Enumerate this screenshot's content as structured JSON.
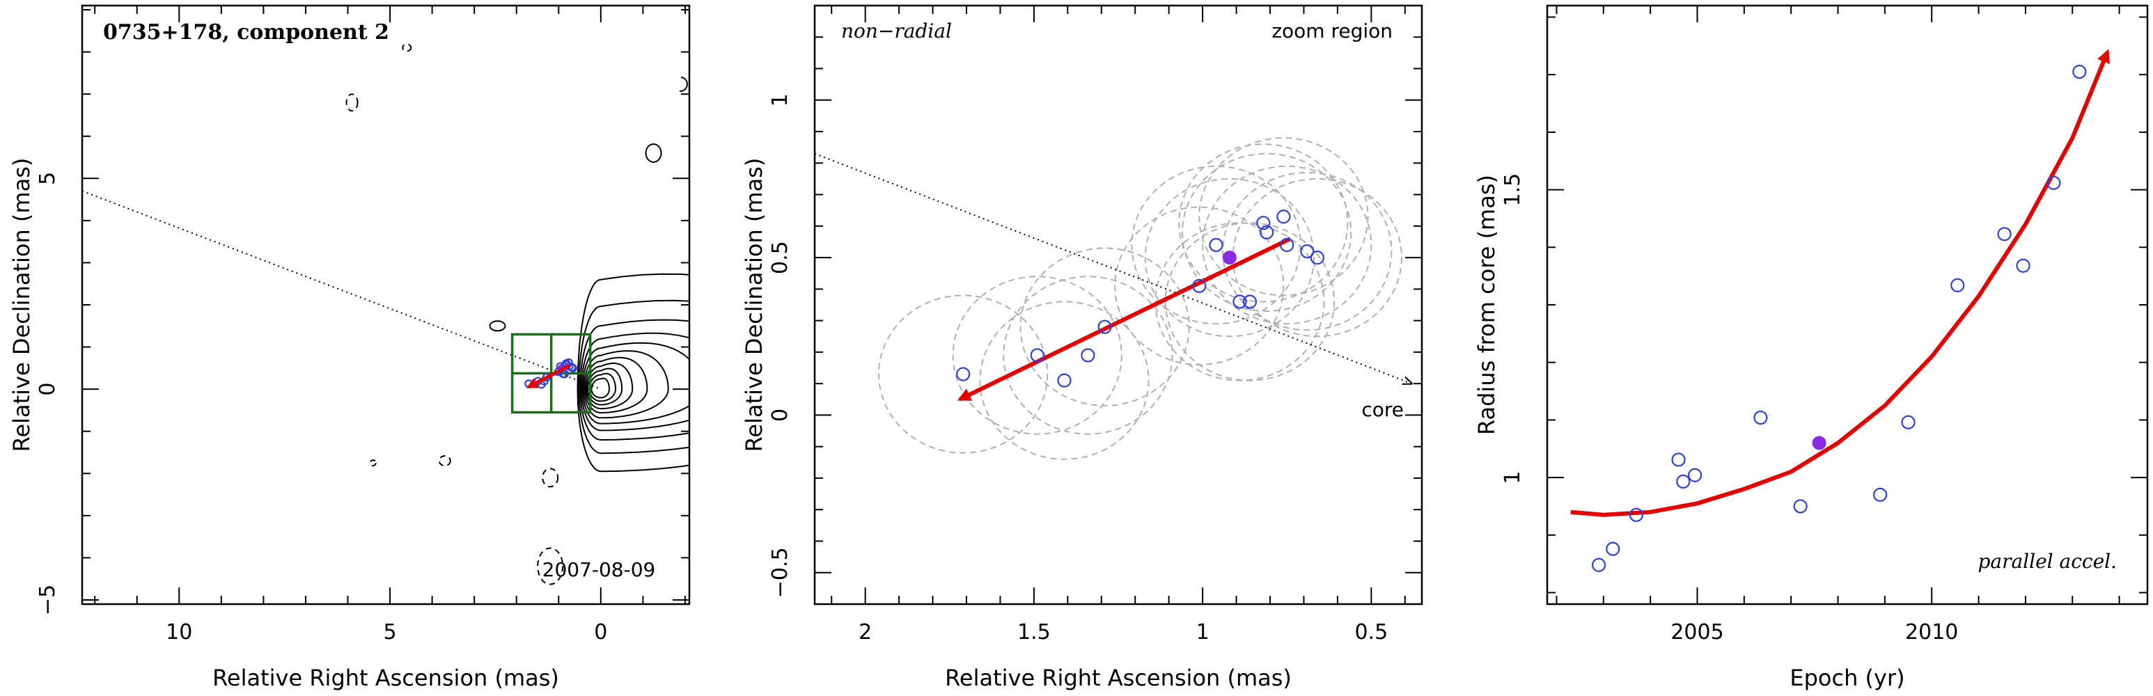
{
  "colors": {
    "points": "#2f3fe0",
    "highlight_point": "#8a2be2",
    "vector": "#e60000",
    "beam": "#b0b0b0",
    "zoom_box": "#1a6e1a"
  },
  "chart_data": [
    {
      "type": "scatter",
      "panel": "contour-map",
      "xlabel": "Relative Right Ascension (mas)",
      "ylabel": "Relative Declination (mas)",
      "xlim": [
        12.3,
        -2.1
      ],
      "ylim": [
        -5.1,
        9.1
      ],
      "xticks": [
        10,
        5,
        0
      ],
      "yticks": [
        5,
        0,
        -5
      ],
      "annotations": {
        "source": "0735+178, component 2",
        "epoch": "2007-08-09"
      },
      "positions_x": [
        1.71,
        1.49,
        1.41,
        1.34,
        1.29,
        1.01,
        0.96,
        0.92,
        0.89,
        0.86,
        0.82,
        0.81,
        0.76,
        0.75,
        0.69,
        0.66
      ],
      "positions_y": [
        0.13,
        0.19,
        0.11,
        0.19,
        0.28,
        0.41,
        0.54,
        0.5,
        0.36,
        0.36,
        0.61,
        0.58,
        0.63,
        0.54,
        0.52,
        0.5
      ],
      "highlight_index": 7,
      "vector": {
        "from": [
          0.74,
          0.56
        ],
        "to": [
          1.72,
          0.05
        ]
      },
      "zoom_box": {
        "x": [
          2.1,
          0.25
        ],
        "y": [
          -0.55,
          1.3
        ]
      },
      "jet_axis": {
        "from": [
          12.3,
          4.7
        ],
        "to": [
          0,
          0
        ]
      }
    },
    {
      "type": "scatter",
      "panel": "zoom",
      "xlabel": "Relative Right Ascension (mas)",
      "ylabel": "Relative Declination (mas)",
      "xlim": [
        2.15,
        0.35
      ],
      "ylim": [
        -0.6,
        1.3
      ],
      "xticks": [
        2,
        1.5,
        1,
        0.5
      ],
      "yticks": [
        1,
        0.5,
        0,
        -0.5
      ],
      "annotations": {
        "left": "non−radial",
        "right": "zoom region",
        "core": "core"
      },
      "x": [
        1.71,
        1.49,
        1.41,
        1.34,
        1.29,
        1.01,
        0.96,
        0.92,
        0.89,
        0.86,
        0.82,
        0.81,
        0.76,
        0.75,
        0.69,
        0.66
      ],
      "y": [
        0.13,
        0.19,
        0.11,
        0.19,
        0.28,
        0.41,
        0.54,
        0.5,
        0.36,
        0.36,
        0.61,
        0.58,
        0.63,
        0.54,
        0.52,
        0.5
      ],
      "beam_radius": [
        0.25,
        0.25,
        0.25,
        0.25,
        0.25,
        0.25,
        0.25,
        0.25,
        0.25,
        0.25,
        0.25,
        0.25,
        0.25,
        0.25,
        0.25,
        0.25
      ],
      "highlight_index": 7,
      "vector": {
        "from": [
          0.74,
          0.56
        ],
        "to": [
          1.72,
          0.05
        ]
      },
      "jet_axis": {
        "from": [
          2.15,
          0.83
        ],
        "to": [
          0.38,
          0.1
        ]
      }
    },
    {
      "type": "scatter",
      "panel": "radius-vs-epoch",
      "xlabel": "Epoch (yr)",
      "ylabel": "Radius from core (mas)",
      "xlim": [
        2001.8,
        2014.6
      ],
      "ylim": [
        0.78,
        1.82
      ],
      "xticks": [
        2005,
        2010
      ],
      "yticks": [
        1,
        1.5
      ],
      "annotations": {
        "label": "parallel accel."
      },
      "x": [
        2002.9,
        2003.2,
        2003.7,
        2004.6,
        2004.7,
        2004.95,
        2006.35,
        2007.2,
        2007.6,
        2008.9,
        2009.5,
        2010.55,
        2011.55,
        2011.95,
        2012.6,
        2013.15
      ],
      "y": [
        0.848,
        0.876,
        0.935,
        1.031,
        0.993,
        1.004,
        1.104,
        0.95,
        1.06,
        0.97,
        1.096,
        1.334,
        1.423,
        1.368,
        1.512,
        1.705
      ],
      "highlight_index": 8,
      "fit_curve": {
        "x": [
          2002.3,
          2003.0,
          2004.0,
          2005.0,
          2006.0,
          2007.0,
          2008.0,
          2009.0,
          2010.0,
          2011.0,
          2012.0,
          2013.0,
          2013.75
        ],
        "y": [
          0.94,
          0.935,
          0.94,
          0.955,
          0.98,
          1.01,
          1.06,
          1.125,
          1.21,
          1.315,
          1.44,
          1.59,
          1.74
        ]
      }
    }
  ]
}
